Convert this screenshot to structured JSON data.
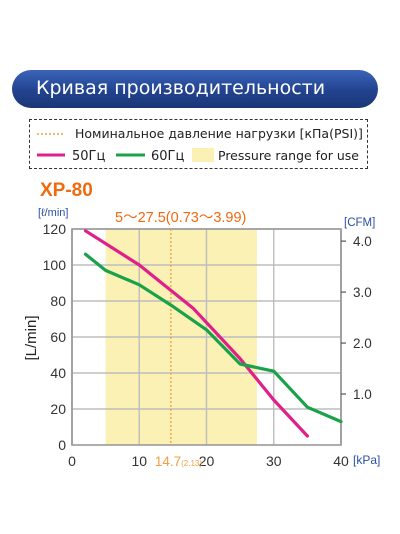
{
  "banner": {
    "title": "Кривая производительности"
  },
  "legend": {
    "nominal_label": "Номинальное давление нагрузки [кПа(PSI)]",
    "s50_label": "50Гц",
    "s60_label": "60Гц",
    "range_label": "Pressure range for use"
  },
  "colors": {
    "banner": "#22438f",
    "series_50hz": "#e0208a",
    "series_60hz": "#1aa24a",
    "range_fill": "#fbf1b4",
    "nominal_line": "#f0a040",
    "model": "#f06a10",
    "axis_label": "#2b4fa0"
  },
  "chart_data": {
    "type": "line",
    "model": "XP-80",
    "range_annotation": "5～27.5(0.73～3.99)",
    "nominal_value_main": "14.7",
    "nominal_value_sub": "(2.13)",
    "xunit": "[kPa]",
    "ylabel": "[L/min]",
    "yunit_left": "[ℓ/min]",
    "yunit_right": "[CFM]",
    "xlim": [
      0,
      40
    ],
    "ylim": [
      0,
      120
    ],
    "x_ticks": [
      "0",
      "10",
      "20",
      "30",
      "40"
    ],
    "y_ticks": [
      "0",
      "20",
      "40",
      "60",
      "80",
      "100",
      "120"
    ],
    "y2_ticks": [
      "1.0",
      "2.0",
      "3.0",
      "4.0"
    ],
    "y2_values": [
      1.0,
      2.0,
      3.0,
      4.0
    ],
    "cfm_per_lmin": 0.035315,
    "pressure_range": [
      5,
      27.5
    ],
    "nominal_pressure": 14.7,
    "grid": true,
    "series": [
      {
        "name": "50Гц",
        "x": [
          2,
          10,
          18,
          25,
          30,
          35
        ],
        "y": [
          119,
          100,
          76,
          48,
          25,
          5
        ]
      },
      {
        "name": "60Гц",
        "x": [
          2,
          5,
          10,
          15,
          20,
          25,
          30,
          35,
          40
        ],
        "y": [
          106,
          97,
          89,
          77,
          64,
          45,
          41,
          21,
          13
        ]
      }
    ]
  }
}
